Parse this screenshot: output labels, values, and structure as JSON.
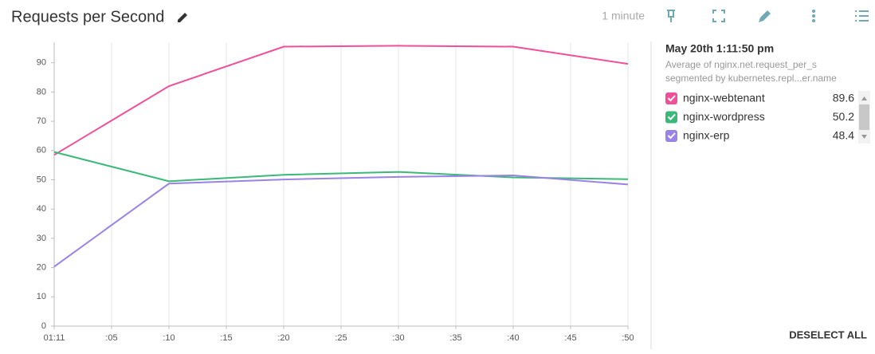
{
  "header": {
    "title": "Requests per Second",
    "timeframe": "1 minute"
  },
  "legend_panel": {
    "timestamp": "May 20th 1:11:50 pm",
    "description_1": "Average of nginx.net.request_per_s",
    "description_2": "segmented by kubernetes.repl...er.name",
    "deselect": "DESELECT ALL"
  },
  "chart_data": {
    "type": "line",
    "x": [
      0,
      10,
      20,
      30,
      40,
      50
    ],
    "series": [
      {
        "name": "nginx-webtenant",
        "color": "#f0509a",
        "values": [
          58.5,
          82,
          95.5,
          95.8,
          95.5,
          89.6
        ]
      },
      {
        "name": "nginx-wordpress",
        "color": "#3cb878",
        "values": [
          59.5,
          49.5,
          51.7,
          52.7,
          50.8,
          50.2
        ]
      },
      {
        "name": "nginx-erp",
        "color": "#9b83e6",
        "values": [
          20.3,
          48.7,
          50.1,
          51,
          51.5,
          48.4
        ]
      }
    ],
    "xlim": [
      0,
      50
    ],
    "xticks": [
      {
        "value": 0,
        "label": "01:11"
      },
      {
        "value": 5,
        "label": ":05"
      },
      {
        "value": 10,
        "label": ":10"
      },
      {
        "value": 15,
        "label": ":15"
      },
      {
        "value": 20,
        "label": ":20"
      },
      {
        "value": 25,
        "label": ":25"
      },
      {
        "value": 30,
        "label": ":30"
      },
      {
        "value": 35,
        "label": ":35"
      },
      {
        "value": 40,
        "label": ":40"
      },
      {
        "value": 45,
        "label": ":45"
      },
      {
        "value": 50,
        "label": ":50"
      }
    ],
    "ylim": [
      0,
      97
    ],
    "yticks": [
      0,
      10,
      20,
      30,
      40,
      50,
      60,
      70,
      80,
      90
    ],
    "grid": true
  }
}
